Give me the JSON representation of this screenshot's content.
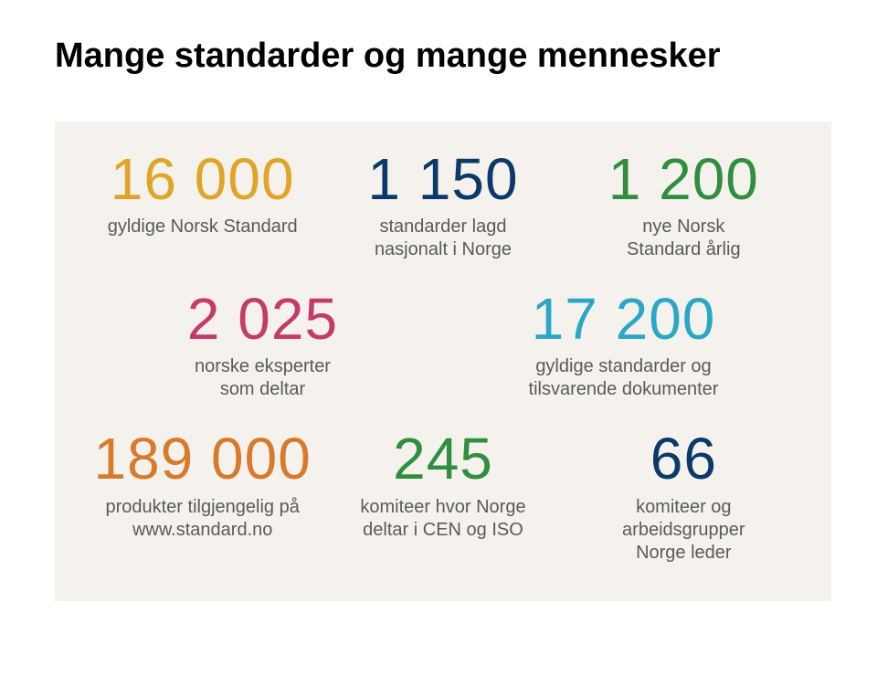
{
  "title": "Mange standarder og mange mennesker",
  "panel_bg": "#f5f2ed",
  "background": "#ffffff",
  "title_color": "#000000",
  "desc_color": "#5a5a5a",
  "bignum_fontsize": 64,
  "desc_fontsize": 20,
  "title_fontsize": 38,
  "rows": [
    [
      {
        "num": "16 000",
        "color": "#e0a426",
        "lines": [
          "gyldige Norsk Standard"
        ]
      },
      {
        "num": "1 150",
        "color": "#0a3a6a",
        "lines": [
          "standarder lagd",
          "nasjonalt i Norge"
        ]
      },
      {
        "num": "1 200",
        "color": "#2f8f3f",
        "lines": [
          "nye Norsk",
          "Standard årlig"
        ]
      }
    ],
    [
      {
        "num": "2 025",
        "color": "#c43a6a",
        "lines": [
          "norske eksperter",
          "som deltar"
        ]
      },
      {
        "num": "17 200",
        "color": "#2aa7c4",
        "lines": [
          "gyldige standarder og",
          "tilsvarende dokumenter"
        ]
      }
    ],
    [
      {
        "num": "189 000",
        "color": "#d97a2b",
        "lines": [
          "produkter tilgjengelig på",
          "www.standard.no"
        ]
      },
      {
        "num": "245",
        "color": "#2f8f3f",
        "lines": [
          "komiteer hvor Norge",
          "deltar i CEN og ISO"
        ]
      },
      {
        "num": "66",
        "color": "#0a3a6a",
        "lines": [
          "komiteer og arbeidsgrupper",
          "Norge leder"
        ]
      }
    ]
  ]
}
